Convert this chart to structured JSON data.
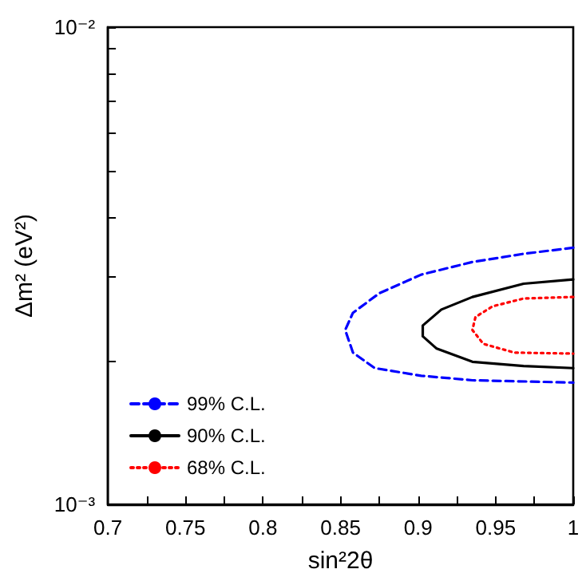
{
  "chart_data": {
    "type": "line",
    "xlabel": "sin²2θ",
    "ylabel": "Δm² (eV²)",
    "log": "y",
    "legend": "bottom left",
    "marker": "none",
    "grid": false,
    "xlim": [
      0.7,
      1
    ],
    "xticks": [
      0.7,
      {
        "value": 0.725,
        "label": null
      },
      0.75,
      {
        "value": 0.775,
        "label": null
      },
      0.8,
      {
        "value": 0.825,
        "label": null
      },
      0.85,
      {
        "value": 0.875,
        "label": null
      },
      0.9,
      {
        "value": 0.925,
        "label": null
      },
      0.95,
      {
        "value": 0.975,
        "label": null
      },
      1
    ],
    "ylim": [
      0.001,
      0.01
    ],
    "yticks": [
      {
        "value": 0.001,
        "label": "10⁻³"
      },
      {
        "value": 0.002,
        "label": null
      },
      {
        "value": 0.003,
        "label": null
      },
      {
        "value": 0.004,
        "label": null
      },
      {
        "value": 0.005,
        "label": null
      },
      {
        "value": 0.006,
        "label": null
      },
      {
        "value": 0.007,
        "label": null
      },
      {
        "value": 0.008,
        "label": null
      },
      {
        "value": 0.009,
        "label": null
      },
      {
        "value": 0.01,
        "label": "10⁻²"
      }
    ],
    "series": [
      {
        "name": "99% C.L.",
        "color": "#0000ff",
        "line_style": "dashed",
        "x": [
          1,
          0.968,
          0.935,
          0.902,
          0.875,
          0.858,
          0.853,
          0.858,
          0.872,
          0.902,
          0.935,
          1
        ],
        "values": [
          0.00345,
          0.00335,
          0.00322,
          0.00303,
          0.00277,
          0.00252,
          0.00232,
          0.00208,
          0.00193,
          0.00186,
          0.00182,
          0.0018
        ]
      },
      {
        "name": "90% C.L.",
        "color": "#000000",
        "line_style": "solid",
        "x": [
          1,
          0.968,
          0.935,
          0.915,
          0.903,
          0.903,
          0.912,
          0.935,
          0.968,
          1
        ],
        "values": [
          0.00296,
          0.0029,
          0.00272,
          0.00256,
          0.00237,
          0.00225,
          0.00212,
          0.00199,
          0.00195,
          0.00193
        ]
      },
      {
        "name": "68% C.L.",
        "color": "#ff0000",
        "line_style": "dotted",
        "x": [
          1,
          0.968,
          0.948,
          0.937,
          0.935,
          0.942,
          0.962,
          1
        ],
        "values": [
          0.00272,
          0.0027,
          0.0026,
          0.00247,
          0.00232,
          0.00217,
          0.00208,
          0.00207
        ]
      }
    ]
  }
}
